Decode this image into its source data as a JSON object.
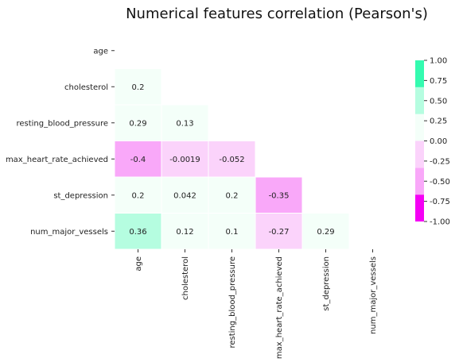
{
  "chart_data": {
    "type": "heatmap",
    "title": "Numerical features correlation (Pearson's)",
    "rows": [
      "age",
      "cholesterol",
      "resting_blood_pressure",
      "max_heart_rate_achieved",
      "st_depression",
      "num_major_vessels"
    ],
    "columns": [
      "age",
      "cholesterol",
      "resting_blood_pressure",
      "max_heart_rate_achieved",
      "st_depression",
      "num_major_vessels"
    ],
    "mask": "upper-triangle-including-diagonal",
    "cells": [
      {
        "row": 1,
        "col": 0,
        "value": 0.2,
        "label": "0.2"
      },
      {
        "row": 2,
        "col": 0,
        "value": 0.29,
        "label": "0.29"
      },
      {
        "row": 2,
        "col": 1,
        "value": 0.13,
        "label": "0.13"
      },
      {
        "row": 3,
        "col": 0,
        "value": -0.4,
        "label": "-0.4"
      },
      {
        "row": 3,
        "col": 1,
        "value": -0.0019,
        "label": "-0.0019"
      },
      {
        "row": 3,
        "col": 2,
        "value": -0.052,
        "label": "-0.052"
      },
      {
        "row": 4,
        "col": 0,
        "value": 0.2,
        "label": "0.2"
      },
      {
        "row": 4,
        "col": 1,
        "value": 0.042,
        "label": "0.042"
      },
      {
        "row": 4,
        "col": 2,
        "value": 0.2,
        "label": "0.2"
      },
      {
        "row": 4,
        "col": 3,
        "value": -0.35,
        "label": "-0.35"
      },
      {
        "row": 5,
        "col": 0,
        "value": 0.36,
        "label": "0.36"
      },
      {
        "row": 5,
        "col": 1,
        "value": 0.12,
        "label": "0.12"
      },
      {
        "row": 5,
        "col": 2,
        "value": 0.1,
        "label": "0.1"
      },
      {
        "row": 5,
        "col": 3,
        "value": -0.27,
        "label": "-0.27"
      },
      {
        "row": 5,
        "col": 4,
        "value": 0.29,
        "label": "0.29"
      }
    ],
    "colorbar": {
      "vmin": -1.0,
      "vmax": 1.0,
      "ticks": [
        "1.00",
        "0.75",
        "0.50",
        "0.25",
        "0.00",
        "-0.25",
        "-0.50",
        "-0.75",
        "-1.00"
      ],
      "bins": [
        {
          "from": -1.0,
          "to": -0.6667,
          "color": "#f500f5"
        },
        {
          "from": -0.6667,
          "to": -0.3333,
          "color": "#f9a8f9"
        },
        {
          "from": -0.3333,
          "to": 0.0,
          "color": "#fbd3fb"
        },
        {
          "from": 0.0,
          "to": 0.3333,
          "color": "#f4fff9"
        },
        {
          "from": 0.3333,
          "to": 0.6667,
          "color": "#b5fde0"
        },
        {
          "from": 0.6667,
          "to": 1.0,
          "color": "#34fbb0"
        }
      ]
    }
  }
}
